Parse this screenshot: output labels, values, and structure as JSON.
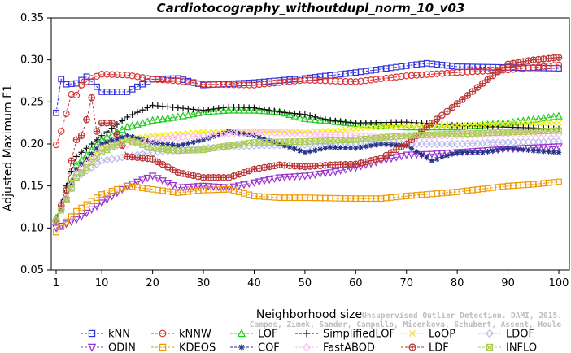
{
  "chart_data": {
    "type": "line",
    "title": "Cardiotocography_withoutdupl_norm_10_v03",
    "xlabel": "Neighborhood size",
    "ylabel": "Adjusted Maximum F1",
    "xlim": [
      1,
      100
    ],
    "ylim": [
      0.05,
      0.35
    ],
    "xticks": [
      1,
      10,
      20,
      30,
      40,
      50,
      60,
      70,
      80,
      90,
      100
    ],
    "yticks": [
      0.05,
      0.1,
      0.15,
      0.2,
      0.25,
      0.3,
      0.35
    ],
    "ytick_labels": [
      "0.05",
      "0.10",
      "0.15",
      "0.20",
      "0.25",
      "0.30",
      "0.35"
    ],
    "grid": false,
    "legend_position": "bottom",
    "watermark": "Campos, Zimek, Sander, Campello, Micenkova, Schubert, Assent, Houle",
    "watermark_line1": "Unsupervised Outlier Detection. DAMI, 2015.",
    "series": [
      {
        "name": "kNN",
        "color": "#3333dd",
        "marker": "square",
        "points": [
          [
            1,
            0.237
          ],
          [
            2,
            0.277
          ],
          [
            3,
            0.271
          ],
          [
            5,
            0.272
          ],
          [
            7,
            0.28
          ],
          [
            10,
            0.262
          ],
          [
            15,
            0.262
          ],
          [
            20,
            0.277
          ],
          [
            25,
            0.278
          ],
          [
            30,
            0.27
          ],
          [
            40,
            0.273
          ],
          [
            50,
            0.278
          ],
          [
            60,
            0.285
          ],
          [
            70,
            0.293
          ],
          [
            74,
            0.296
          ],
          [
            80,
            0.292
          ],
          [
            90,
            0.291
          ],
          [
            100,
            0.29
          ]
        ]
      },
      {
        "name": "kNNW",
        "color": "#dd3333",
        "marker": "circle",
        "points": [
          [
            1,
            0.199
          ],
          [
            2,
            0.215
          ],
          [
            3,
            0.236
          ],
          [
            4,
            0.259
          ],
          [
            5,
            0.258
          ],
          [
            6,
            0.27
          ],
          [
            8,
            0.278
          ],
          [
            10,
            0.283
          ],
          [
            15,
            0.282
          ],
          [
            20,
            0.277
          ],
          [
            25,
            0.275
          ],
          [
            30,
            0.271
          ],
          [
            40,
            0.27
          ],
          [
            50,
            0.276
          ],
          [
            60,
            0.274
          ],
          [
            70,
            0.281
          ],
          [
            80,
            0.285
          ],
          [
            90,
            0.288
          ],
          [
            100,
            0.294
          ]
        ]
      },
      {
        "name": "LOF",
        "color": "#22cc22",
        "marker": "triangle",
        "points": [
          [
            1,
            0.112
          ],
          [
            3,
            0.135
          ],
          [
            5,
            0.175
          ],
          [
            10,
            0.205
          ],
          [
            15,
            0.22
          ],
          [
            20,
            0.228
          ],
          [
            25,
            0.232
          ],
          [
            30,
            0.238
          ],
          [
            35,
            0.24
          ],
          [
            40,
            0.24
          ],
          [
            45,
            0.238
          ],
          [
            50,
            0.23
          ],
          [
            60,
            0.224
          ],
          [
            70,
            0.22
          ],
          [
            80,
            0.22
          ],
          [
            90,
            0.225
          ],
          [
            100,
            0.233
          ]
        ]
      },
      {
        "name": "SimplifiedLOF",
        "color": "#111111",
        "marker": "plus",
        "points": [
          [
            1,
            0.11
          ],
          [
            3,
            0.15
          ],
          [
            5,
            0.185
          ],
          [
            10,
            0.21
          ],
          [
            15,
            0.232
          ],
          [
            20,
            0.246
          ],
          [
            25,
            0.243
          ],
          [
            30,
            0.24
          ],
          [
            35,
            0.244
          ],
          [
            40,
            0.243
          ],
          [
            45,
            0.238
          ],
          [
            50,
            0.235
          ],
          [
            55,
            0.228
          ],
          [
            60,
            0.225
          ],
          [
            70,
            0.226
          ],
          [
            80,
            0.222
          ],
          [
            90,
            0.22
          ],
          [
            100,
            0.218
          ]
        ]
      },
      {
        "name": "LoOP",
        "color": "#eeee00",
        "marker": "cross",
        "points": [
          [
            1,
            0.11
          ],
          [
            5,
            0.17
          ],
          [
            10,
            0.195
          ],
          [
            15,
            0.205
          ],
          [
            20,
            0.21
          ],
          [
            30,
            0.214
          ],
          [
            40,
            0.215
          ],
          [
            50,
            0.214
          ],
          [
            60,
            0.218
          ],
          [
            70,
            0.222
          ],
          [
            80,
            0.222
          ],
          [
            90,
            0.224
          ],
          [
            100,
            0.225
          ]
        ]
      },
      {
        "name": "LDOF",
        "color": "#bbbbee",
        "marker": "diamond",
        "points": [
          [
            1,
            0.11
          ],
          [
            5,
            0.16
          ],
          [
            10,
            0.18
          ],
          [
            20,
            0.19
          ],
          [
            30,
            0.195
          ],
          [
            40,
            0.198
          ],
          [
            50,
            0.199
          ],
          [
            60,
            0.2
          ],
          [
            70,
            0.2
          ],
          [
            80,
            0.2
          ],
          [
            90,
            0.202
          ],
          [
            100,
            0.203
          ]
        ]
      },
      {
        "name": "ODIN",
        "color": "#9933cc",
        "marker": "triangledown",
        "points": [
          [
            1,
            0.1
          ],
          [
            5,
            0.11
          ],
          [
            10,
            0.13
          ],
          [
            15,
            0.15
          ],
          [
            20,
            0.162
          ],
          [
            25,
            0.148
          ],
          [
            30,
            0.15
          ],
          [
            35,
            0.148
          ],
          [
            40,
            0.154
          ],
          [
            45,
            0.16
          ],
          [
            50,
            0.162
          ],
          [
            55,
            0.166
          ],
          [
            60,
            0.172
          ],
          [
            65,
            0.18
          ],
          [
            70,
            0.187
          ],
          [
            75,
            0.188
          ],
          [
            80,
            0.19
          ],
          [
            90,
            0.194
          ],
          [
            100,
            0.197
          ]
        ]
      },
      {
        "name": "KDEOS",
        "color": "#ee9900",
        "marker": "square",
        "points": [
          [
            1,
            0.095
          ],
          [
            5,
            0.12
          ],
          [
            10,
            0.14
          ],
          [
            15,
            0.15
          ],
          [
            20,
            0.146
          ],
          [
            25,
            0.142
          ],
          [
            30,
            0.145
          ],
          [
            35,
            0.146
          ],
          [
            40,
            0.138
          ],
          [
            45,
            0.136
          ],
          [
            50,
            0.136
          ],
          [
            60,
            0.135
          ],
          [
            65,
            0.135
          ],
          [
            70,
            0.138
          ],
          [
            80,
            0.143
          ],
          [
            90,
            0.15
          ],
          [
            95,
            0.152
          ],
          [
            100,
            0.155
          ]
        ]
      },
      {
        "name": "COF",
        "color": "#223388",
        "marker": "asterisk",
        "points": [
          [
            1,
            0.108
          ],
          [
            3,
            0.135
          ],
          [
            5,
            0.17
          ],
          [
            10,
            0.2
          ],
          [
            15,
            0.21
          ],
          [
            20,
            0.202
          ],
          [
            25,
            0.198
          ],
          [
            30,
            0.205
          ],
          [
            35,
            0.215
          ],
          [
            40,
            0.21
          ],
          [
            45,
            0.2
          ],
          [
            50,
            0.19
          ],
          [
            55,
            0.196
          ],
          [
            60,
            0.195
          ],
          [
            65,
            0.2
          ],
          [
            70,
            0.198
          ],
          [
            75,
            0.18
          ],
          [
            80,
            0.19
          ],
          [
            85,
            0.19
          ],
          [
            90,
            0.195
          ],
          [
            95,
            0.192
          ],
          [
            100,
            0.19
          ]
        ]
      },
      {
        "name": "FastABOD",
        "color": "#ffbbee",
        "marker": "diamond",
        "points": [
          [
            1,
            0.108
          ],
          [
            5,
            0.165
          ],
          [
            10,
            0.195
          ],
          [
            20,
            0.205
          ],
          [
            30,
            0.21
          ],
          [
            40,
            0.214
          ],
          [
            50,
            0.212
          ],
          [
            60,
            0.21
          ],
          [
            70,
            0.208
          ],
          [
            80,
            0.21
          ],
          [
            90,
            0.212
          ],
          [
            100,
            0.212
          ]
        ]
      },
      {
        "name": "LDF",
        "color": "#bb3333",
        "marker": "circleplus",
        "points": [
          [
            1,
            0.108
          ],
          [
            3,
            0.145
          ],
          [
            4,
            0.18
          ],
          [
            5,
            0.205
          ],
          [
            6,
            0.21
          ],
          [
            7,
            0.229
          ],
          [
            8,
            0.255
          ],
          [
            9,
            0.215
          ],
          [
            10,
            0.225
          ],
          [
            12,
            0.225
          ],
          [
            15,
            0.185
          ],
          [
            20,
            0.182
          ],
          [
            25,
            0.166
          ],
          [
            30,
            0.16
          ],
          [
            35,
            0.16
          ],
          [
            40,
            0.17
          ],
          [
            45,
            0.175
          ],
          [
            50,
            0.173
          ],
          [
            55,
            0.175
          ],
          [
            60,
            0.176
          ],
          [
            65,
            0.183
          ],
          [
            70,
            0.2
          ],
          [
            75,
            0.225
          ],
          [
            80,
            0.248
          ],
          [
            85,
            0.272
          ],
          [
            90,
            0.295
          ],
          [
            95,
            0.3
          ],
          [
            100,
            0.303
          ]
        ]
      },
      {
        "name": "INFLO",
        "color": "#aacc55",
        "marker": "squarex",
        "points": [
          [
            1,
            0.108
          ],
          [
            5,
            0.16
          ],
          [
            10,
            0.19
          ],
          [
            15,
            0.205
          ],
          [
            20,
            0.195
          ],
          [
            25,
            0.192
          ],
          [
            30,
            0.193
          ],
          [
            35,
            0.198
          ],
          [
            40,
            0.202
          ],
          [
            50,
            0.203
          ],
          [
            60,
            0.205
          ],
          [
            70,
            0.21
          ],
          [
            80,
            0.212
          ],
          [
            90,
            0.214
          ],
          [
            100,
            0.216
          ]
        ]
      }
    ]
  }
}
